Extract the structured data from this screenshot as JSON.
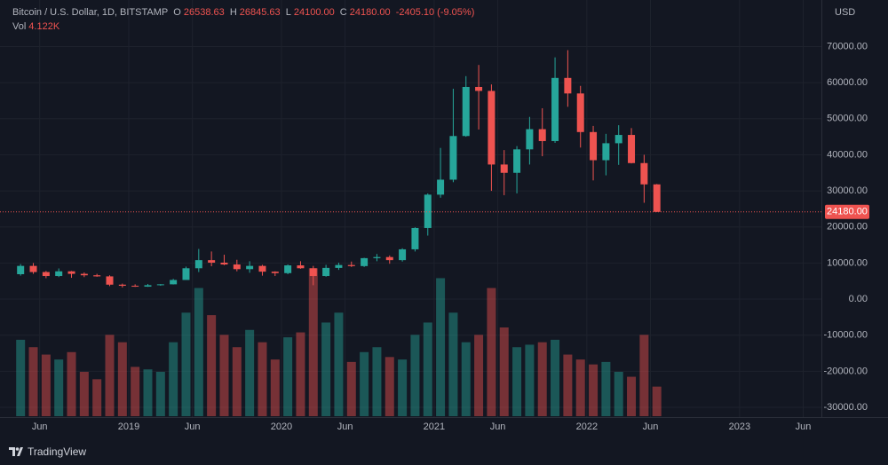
{
  "header": {
    "symbol": "Bitcoin / U.S. Dollar, 1D, BITSTAMP",
    "ohlc": [
      {
        "key": "O",
        "value": "26538.63"
      },
      {
        "key": "H",
        "value": "26845.63"
      },
      {
        "key": "L",
        "value": "24100.00"
      },
      {
        "key": "C",
        "value": "24180.00"
      }
    ],
    "change": "-2405.10 (-9.05%)",
    "volume_key": "Vol",
    "volume_value": "4.122K"
  },
  "footer": {
    "brand": "TradingView"
  },
  "chart_data": {
    "type": "candlestick",
    "currency": "USD",
    "up_color": "#26a69a",
    "down_color": "#ef5350",
    "grid": true,
    "x": [
      "2018-04",
      "2018-05",
      "2018-06",
      "2018-07",
      "2018-08",
      "2018-09",
      "2018-10",
      "2018-11",
      "2018-12",
      "2019-01",
      "2019-02",
      "2019-03",
      "2019-04",
      "2019-05",
      "2019-06",
      "2019-07",
      "2019-08",
      "2019-09",
      "2019-10",
      "2019-11",
      "2019-12",
      "2020-01",
      "2020-02",
      "2020-03",
      "2020-04",
      "2020-05",
      "2020-06",
      "2020-07",
      "2020-08",
      "2020-09",
      "2020-10",
      "2020-11",
      "2020-12",
      "2021-01",
      "2021-02",
      "2021-03",
      "2021-04",
      "2021-05",
      "2021-06",
      "2021-07",
      "2021-08",
      "2021-09",
      "2021-10",
      "2021-11",
      "2021-12",
      "2022-01",
      "2022-02",
      "2022-03",
      "2022-04",
      "2022-05",
      "2022-06"
    ],
    "open": [
      6900,
      9200,
      7500,
      6400,
      7700,
      7000,
      6600,
      6300,
      4000,
      3700,
      3450,
      3850,
      4100,
      5300,
      8550,
      10800,
      10100,
      9600,
      8300,
      9200,
      7600,
      7200,
      9350,
      8550,
      6400,
      8650,
      9450,
      9150,
      11350,
      11650,
      10800,
      13800,
      19700,
      28950,
      33100,
      45200,
      58800,
      57700,
      37300,
      35000,
      41500,
      47100,
      43800,
      61300,
      57000,
      46300,
      38500,
      43200,
      45500,
      37700,
      31800
    ],
    "high": [
      9700,
      10000,
      7800,
      8500,
      7800,
      7400,
      7000,
      6600,
      4300,
      4100,
      4200,
      4150,
      5600,
      9000,
      13900,
      13200,
      12300,
      10900,
      10500,
      9500,
      7700,
      9600,
      10500,
      9200,
      9500,
      10100,
      10400,
      11450,
      12500,
      12100,
      14100,
      19900,
      29300,
      41900,
      58300,
      61800,
      64900,
      59500,
      41300,
      42400,
      50500,
      52900,
      67000,
      69000,
      59100,
      48000,
      45800,
      48200,
      47400,
      40000,
      31900
    ],
    "low": [
      6500,
      7000,
      5800,
      6100,
      5900,
      6100,
      6200,
      3600,
      3200,
      3400,
      3400,
      3700,
      4050,
      5300,
      7500,
      9100,
      9400,
      7700,
      7300,
      6500,
      6400,
      6900,
      8400,
      3850,
      6200,
      8100,
      8900,
      8900,
      10500,
      9800,
      10400,
      13200,
      17600,
      28100,
      32400,
      45000,
      47000,
      30000,
      28800,
      29300,
      37300,
      39600,
      43300,
      53300,
      42000,
      32900,
      34300,
      37200,
      37600,
      26700,
      24100
    ],
    "close": [
      9200,
      7500,
      6400,
      7700,
      7000,
      6600,
      6300,
      4000,
      3700,
      3450,
      3850,
      4100,
      5300,
      8550,
      10800,
      10100,
      9600,
      8300,
      9200,
      7600,
      7200,
      9350,
      8550,
      6400,
      8650,
      9450,
      9150,
      11350,
      11650,
      10800,
      13800,
      19700,
      28950,
      33100,
      45200,
      58800,
      57700,
      37300,
      35000,
      41500,
      47100,
      43800,
      61300,
      57000,
      46300,
      38500,
      43200,
      45500,
      37700,
      31800,
      24180
    ],
    "volume": [
      310000,
      280000,
      250000,
      230000,
      260000,
      180000,
      150000,
      330000,
      300000,
      200000,
      190000,
      180000,
      300000,
      420000,
      520000,
      410000,
      330000,
      280000,
      350000,
      300000,
      230000,
      320000,
      340000,
      600000,
      380000,
      420000,
      220000,
      260000,
      280000,
      240000,
      230000,
      330000,
      380000,
      560000,
      420000,
      300000,
      330000,
      520000,
      360000,
      280000,
      290000,
      300000,
      310000,
      250000,
      230000,
      210000,
      220000,
      180000,
      160000,
      330000,
      120000
    ],
    "vollim": [
      0,
      900000
    ],
    "last_price": {
      "value": 24180,
      "label": "24180.00"
    },
    "ylim": [
      -32700,
      82900
    ],
    "yticks": [
      {
        "value": 70000,
        "label": "70000.00"
      },
      {
        "value": 60000,
        "label": "60000.00"
      },
      {
        "value": 50000,
        "label": "50000.00"
      },
      {
        "value": 40000,
        "label": "40000.00"
      },
      {
        "value": 30000,
        "label": "30000.00"
      },
      {
        "value": 20000,
        "label": "20000.00"
      },
      {
        "value": 10000,
        "label": "10000.00"
      },
      {
        "value": 0,
        "label": "0.00"
      },
      {
        "value": -10000,
        "label": "-10000.00"
      },
      {
        "value": -20000,
        "label": "-20000.00"
      },
      {
        "value": -30000,
        "label": "-30000.00"
      }
    ],
    "xticks": [
      {
        "value": "2018-06",
        "label": "Jun"
      },
      {
        "value": "2019-01",
        "label": "2019"
      },
      {
        "value": "2019-06",
        "label": "Jun"
      },
      {
        "value": "2020-01",
        "label": "2020"
      },
      {
        "value": "2020-06",
        "label": "Jun"
      },
      {
        "value": "2021-01",
        "label": "2021"
      },
      {
        "value": "2021-06",
        "label": "Jun"
      },
      {
        "value": "2022-01",
        "label": "2022"
      },
      {
        "value": "2022-06",
        "label": "Jun"
      },
      {
        "value": "2023-01",
        "label": "2023"
      },
      {
        "value": "2023-06",
        "label": "Jun"
      }
    ]
  }
}
